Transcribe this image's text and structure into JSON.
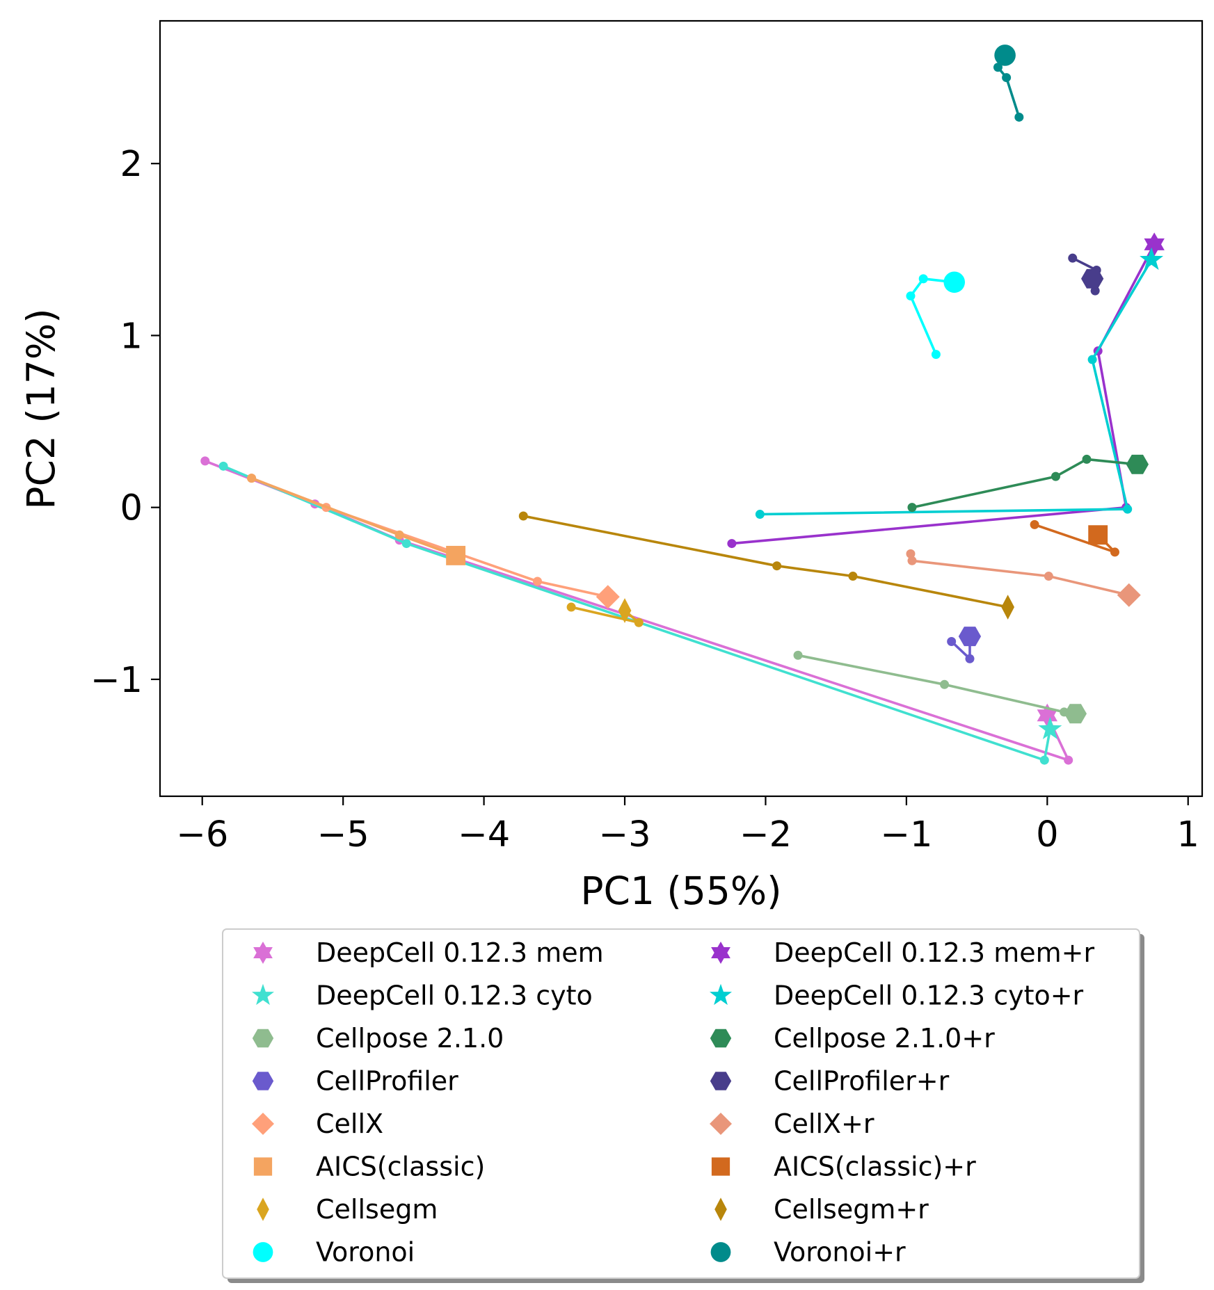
{
  "chart_data": {
    "type": "scatter",
    "title": "",
    "xlabel": "PC1 (55%)",
    "ylabel": "PC2 (17%)",
    "xlim": [
      -6.3,
      1.1
    ],
    "ylim": [
      -1.68,
      2.83
    ],
    "xticks": [
      -6,
      -5,
      -4,
      -3,
      -2,
      -1,
      0,
      1
    ],
    "xtick_labels": [
      "−6",
      "−5",
      "−4",
      "−3",
      "−2",
      "−1",
      "0",
      "1"
    ],
    "yticks": [
      -1,
      0,
      1,
      2
    ],
    "ytick_labels": [
      "−1",
      "0",
      "1",
      "2"
    ],
    "grid": false,
    "legend_position": "below plot, two columns",
    "series": [
      {
        "name": "DeepCell 0.12.3 mem",
        "color": "#da70d6",
        "marker": "hexagram",
        "x": [
          -5.98,
          -5.2,
          -4.6,
          0.15,
          0.0
        ],
        "y": [
          0.27,
          0.02,
          -0.19,
          -1.47,
          -1.21
        ]
      },
      {
        "name": "DeepCell 0.12.3 cyto",
        "color": "#40e0d0",
        "marker": "star",
        "x": [
          -5.85,
          -4.55,
          -0.02,
          0.02
        ],
        "y": [
          0.24,
          -0.21,
          -1.47,
          -1.29
        ]
      },
      {
        "name": "Cellpose 2.1.0",
        "color": "#8fbc8f",
        "marker": "hexagon",
        "x": [
          -1.77,
          -0.73,
          0.12,
          0.2
        ],
        "y": [
          -0.86,
          -1.03,
          -1.19,
          -1.2
        ]
      },
      {
        "name": "CellProfiler",
        "color": "#6a5acd",
        "marker": "hexagon",
        "x": [
          -0.68,
          -0.55,
          -0.55
        ],
        "y": [
          -0.78,
          -0.88,
          -0.75
        ]
      },
      {
        "name": "CellX",
        "color": "#ffa07a",
        "marker": "diamond",
        "x": [
          -5.65,
          -5.12,
          -3.62,
          -3.12
        ],
        "y": [
          0.17,
          0.0,
          -0.43,
          -0.52
        ]
      },
      {
        "name": "AICS(classic)",
        "color": "#f4a460",
        "marker": "square",
        "x": [
          -5.65,
          -4.6,
          -4.2
        ],
        "y": [
          0.17,
          -0.16,
          -0.28
        ]
      },
      {
        "name": "Cellsegm",
        "color": "#daa520",
        "marker": "thin-diamond",
        "x": [
          -3.38,
          -2.9,
          -3.0
        ],
        "y": [
          -0.58,
          -0.67,
          -0.6
        ]
      },
      {
        "name": "Voronoi",
        "color": "#00ffff",
        "marker": "circle",
        "x": [
          -0.79,
          -0.97,
          -0.88,
          -0.66
        ],
        "y": [
          0.89,
          1.23,
          1.33,
          1.31
        ]
      },
      {
        "name": "DeepCell 0.12.3 mem+r",
        "color": "#9932cc",
        "marker": "hexagram",
        "x": [
          -2.24,
          0.56,
          0.36,
          0.76
        ],
        "y": [
          -0.21,
          0.0,
          0.91,
          1.53
        ]
      },
      {
        "name": "DeepCell 0.12.3 cyto+r",
        "color": "#00ced1",
        "marker": "star",
        "x": [
          -2.04,
          0.57,
          0.32,
          0.74
        ],
        "y": [
          -0.04,
          -0.01,
          0.86,
          1.44
        ]
      },
      {
        "name": "Cellpose 2.1.0+r",
        "color": "#2e8b57",
        "marker": "hexagon",
        "x": [
          -0.96,
          0.06,
          0.28,
          0.64
        ],
        "y": [
          0.0,
          0.18,
          0.28,
          0.25
        ]
      },
      {
        "name": "CellProfiler+r",
        "color": "#483d8b",
        "marker": "hexagon",
        "x": [
          0.18,
          0.35,
          0.34,
          0.32
        ],
        "y": [
          1.45,
          1.38,
          1.26,
          1.33
        ]
      },
      {
        "name": "CellX+r",
        "color": "#e9967a",
        "marker": "diamond",
        "x": [
          -0.97,
          -0.96,
          0.01,
          0.58
        ],
        "y": [
          -0.27,
          -0.31,
          -0.4,
          -0.51
        ]
      },
      {
        "name": "AICS(classic)+r",
        "color": "#d2691e",
        "marker": "square",
        "x": [
          -0.09,
          0.48,
          0.36
        ],
        "y": [
          -0.1,
          -0.26,
          -0.16
        ]
      },
      {
        "name": "Cellsegm+r",
        "color": "#b8860b",
        "marker": "thin-diamond",
        "x": [
          -3.72,
          -1.92,
          -1.38,
          -0.28
        ],
        "y": [
          -0.05,
          -0.34,
          -0.4,
          -0.58
        ]
      },
      {
        "name": "Voronoi+r",
        "color": "#008b8b",
        "marker": "circle",
        "x": [
          -0.2,
          -0.29,
          -0.35,
          -0.3
        ],
        "y": [
          2.27,
          2.5,
          2.56,
          2.63
        ]
      }
    ]
  }
}
